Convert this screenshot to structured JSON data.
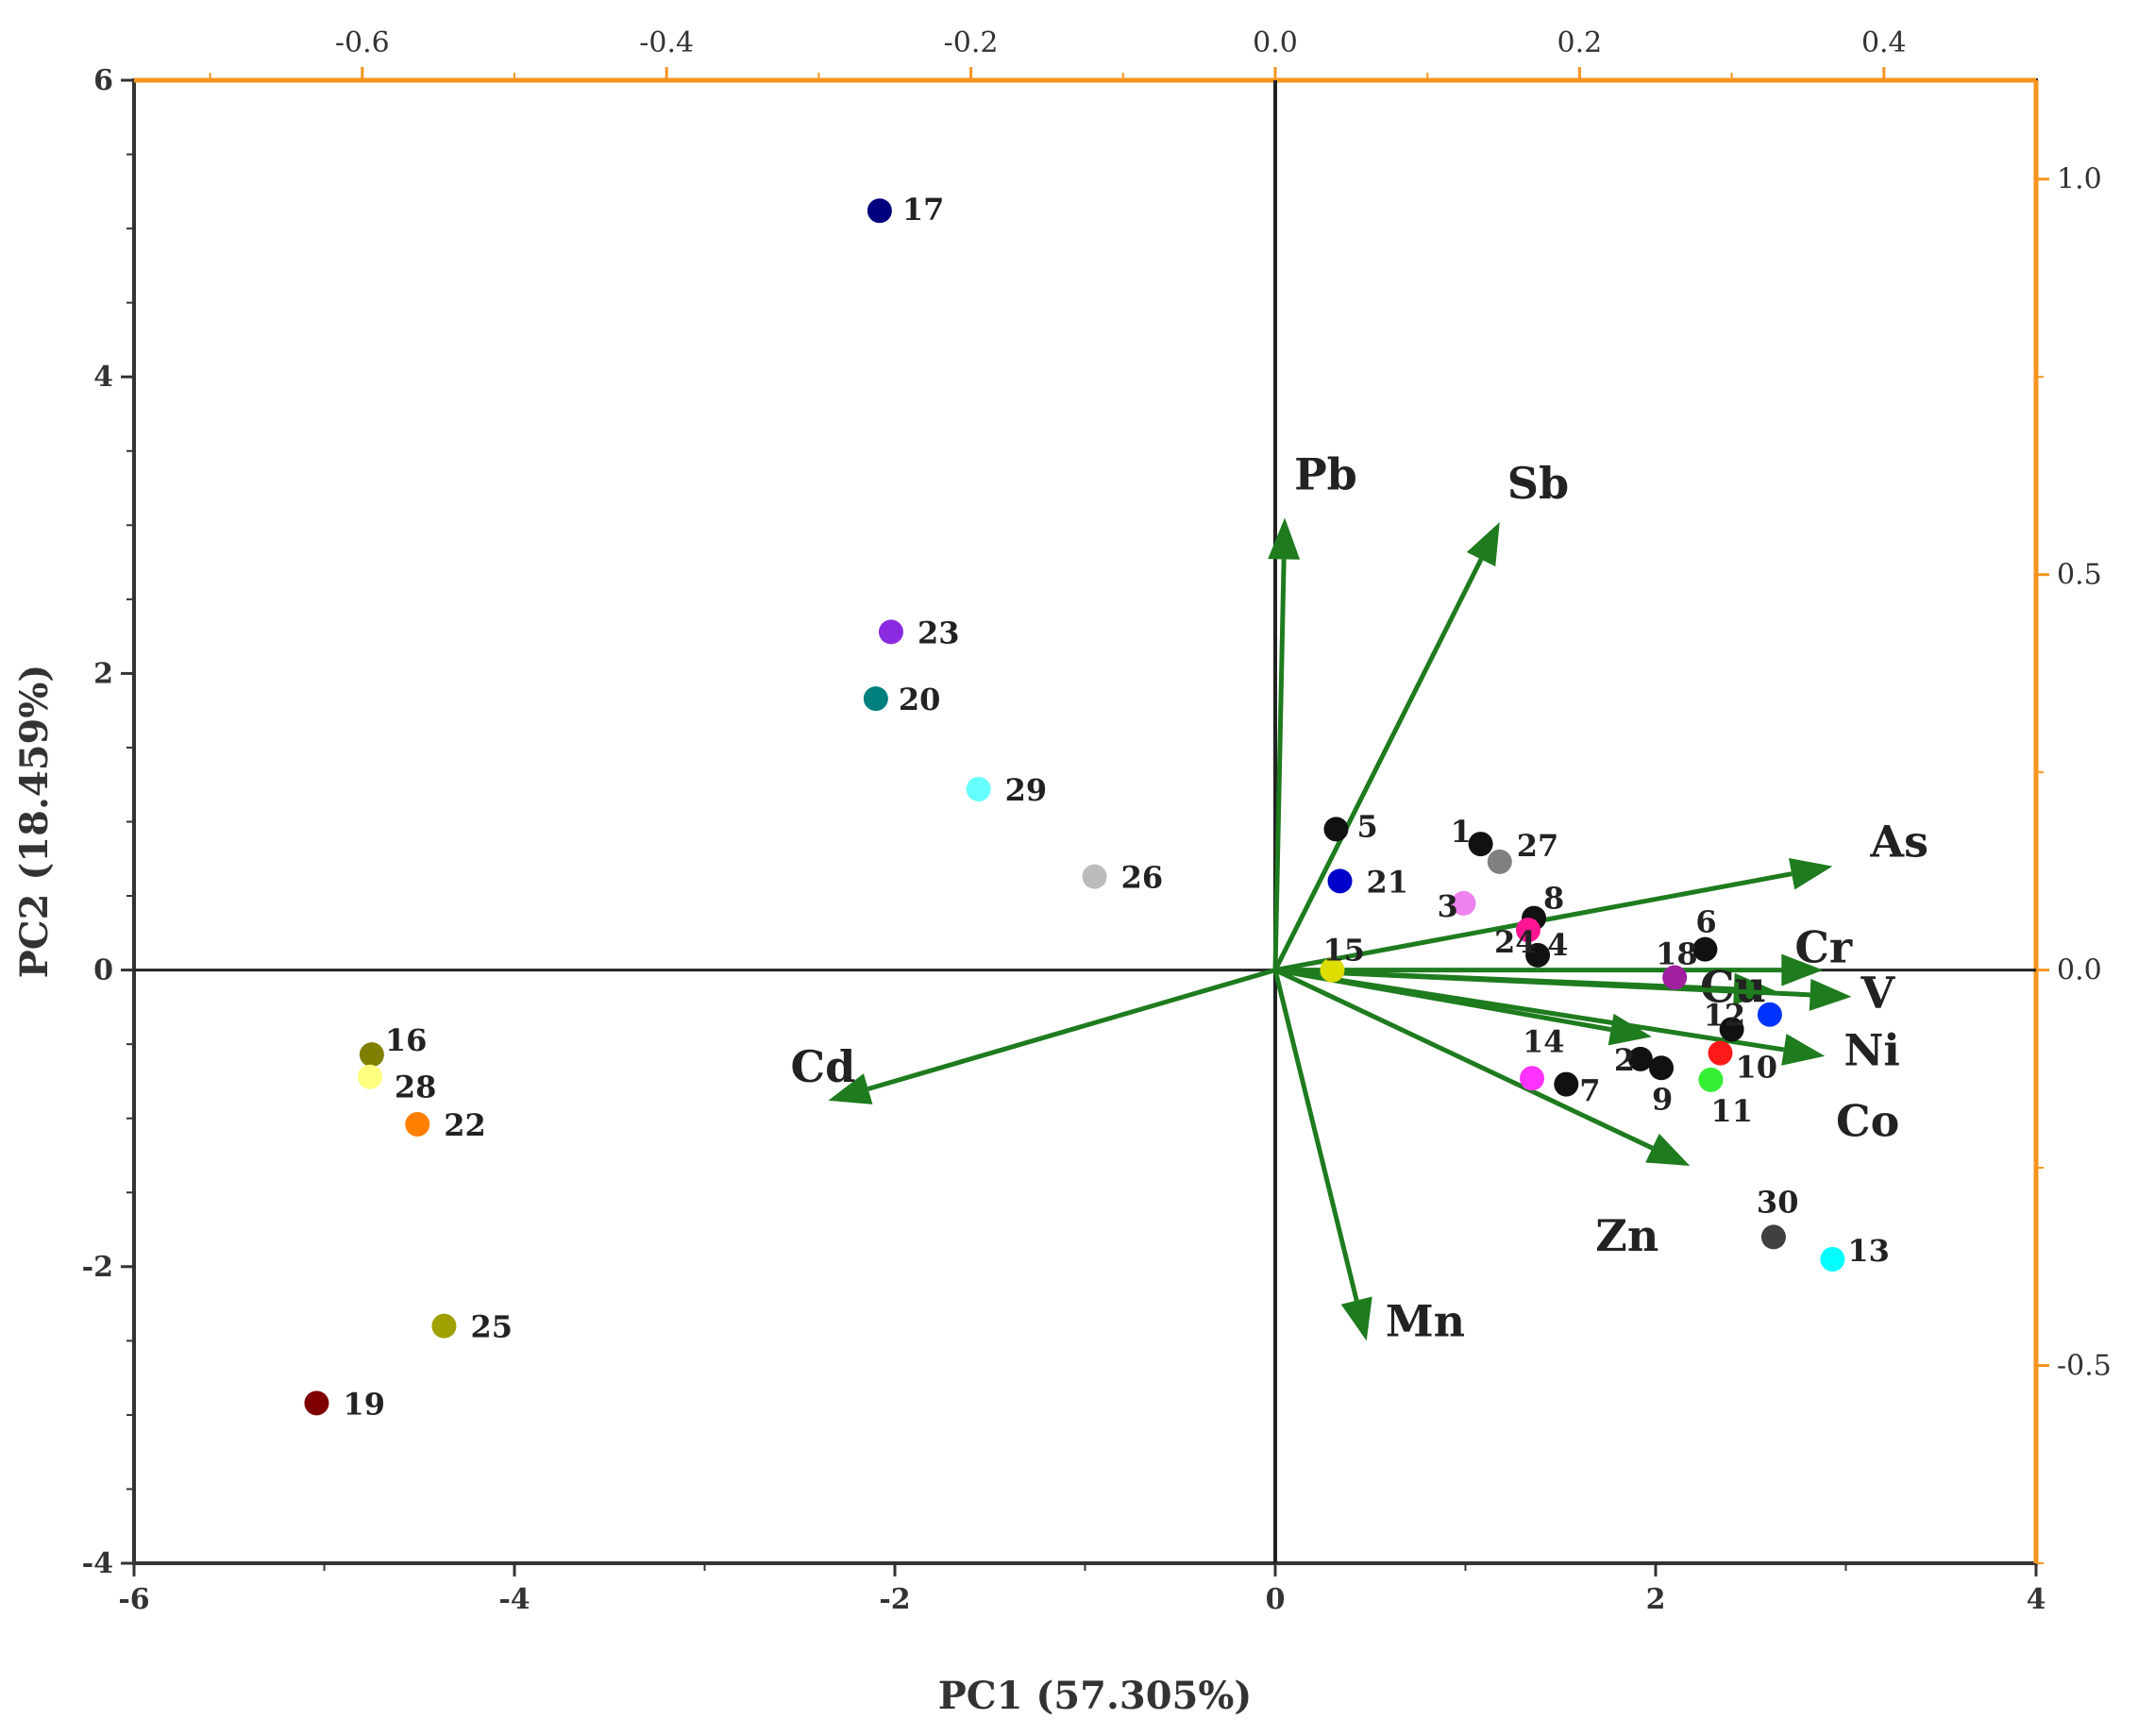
{
  "chart_data": {
    "type": "scatter",
    "subtype": "pca-biplot",
    "xlabel": "PC1 (57.305%)",
    "ylabel": "PC2 (18.459%)",
    "xlim": [
      -6,
      4
    ],
    "ylim": [
      -4,
      6
    ],
    "x_ticks": [
      -6,
      -4,
      -2,
      0,
      2,
      4
    ],
    "y_ticks": [
      -4,
      -2,
      0,
      2,
      4,
      6
    ],
    "x_tick_labels": [
      "-6",
      "-4",
      "-2",
      "0",
      "2",
      "4"
    ],
    "y_tick_labels": [
      "-4",
      "-2",
      "0",
      "2",
      "4",
      "6"
    ],
    "secondary_x": {
      "lim": [
        -0.75,
        0.5
      ],
      "ticks": [
        -0.6,
        -0.4,
        -0.2,
        0.0,
        0.2,
        0.4
      ],
      "tick_labels": [
        "-0.6",
        "-0.4",
        "-0.2",
        "0.0",
        "0.2",
        "0.4"
      ]
    },
    "secondary_y": {
      "lim": [
        -0.75,
        1.125
      ],
      "ticks": [
        -0.5,
        0.0,
        0.5,
        1.0
      ],
      "tick_labels": [
        "-0.5",
        "0.0",
        "0.5",
        "1.0"
      ]
    },
    "accent_color": "#f7941d",
    "arrow_color": "#1e7b1e",
    "points": [
      {
        "label": "1",
        "x": 1.08,
        "y": 0.85,
        "color": "#111111"
      },
      {
        "label": "2",
        "x": 1.92,
        "y": -0.6,
        "color": "#111111"
      },
      {
        "label": "3",
        "x": 0.99,
        "y": 0.45,
        "color": "#ee82ee"
      },
      {
        "label": "4",
        "x": 1.38,
        "y": 0.1,
        "color": "#111111"
      },
      {
        "label": "5",
        "x": 0.32,
        "y": 0.95,
        "color": "#111111"
      },
      {
        "label": "6",
        "x": 2.26,
        "y": 0.14,
        "color": "#111111"
      },
      {
        "label": "7",
        "x": 1.53,
        "y": -0.77,
        "color": "#111111"
      },
      {
        "label": "8",
        "x": 1.36,
        "y": 0.35,
        "color": "#111111"
      },
      {
        "label": "9",
        "x": 2.03,
        "y": -0.66,
        "color": "#111111"
      },
      {
        "label": "10",
        "x": 2.34,
        "y": -0.56,
        "color": "#ff1a1a"
      },
      {
        "label": "11",
        "x": 2.29,
        "y": -0.74,
        "color": "#33ee33"
      },
      {
        "label": "12",
        "x": 2.4,
        "y": -0.4,
        "color": "#111111"
      },
      {
        "label": "13",
        "x": 2.93,
        "y": -1.95,
        "color": "#00ffff"
      },
      {
        "label": "14",
        "x": 1.35,
        "y": -0.73,
        "color": "#ff33ff"
      },
      {
        "label": "15",
        "x": 0.3,
        "y": 0.0,
        "color": "#dddd00"
      },
      {
        "label": "16",
        "x": -4.75,
        "y": -0.57,
        "color": "#7f7f00"
      },
      {
        "label": "17",
        "x": -2.08,
        "y": 5.12,
        "color": "#00007f"
      },
      {
        "label": "18",
        "x": 2.1,
        "y": -0.05,
        "color": "#a020a0"
      },
      {
        "label": "19",
        "x": -5.04,
        "y": -2.92,
        "color": "#7f0000"
      },
      {
        "label": "20",
        "x": -2.1,
        "y": 1.83,
        "color": "#007f7f"
      },
      {
        "label": "21",
        "x": 0.34,
        "y": 0.6,
        "color": "#0000cc"
      },
      {
        "label": "22",
        "x": -4.51,
        "y": -1.04,
        "color": "#ff7f00"
      },
      {
        "label": "23",
        "x": -2.02,
        "y": 2.28,
        "color": "#8a2be2"
      },
      {
        "label": "24",
        "x": 1.33,
        "y": 0.27,
        "color": "#ff1493"
      },
      {
        "label": "25",
        "x": -4.37,
        "y": -2.4,
        "color": "#a0a000"
      },
      {
        "label": "26",
        "x": -0.95,
        "y": 0.63,
        "color": "#bbbbbb"
      },
      {
        "label": "27",
        "x": 1.18,
        "y": 0.73,
        "color": "#808080"
      },
      {
        "label": "28",
        "x": -4.76,
        "y": -0.72,
        "color": "#ffff80"
      },
      {
        "label": "29",
        "x": -1.56,
        "y": 1.22,
        "color": "#66ffff"
      },
      {
        "label": "30",
        "x": 2.62,
        "y": -1.8,
        "color": "#404040"
      },
      {
        "label": "Cu_pt",
        "x": 2.6,
        "y": -0.3,
        "color": "#0033ff"
      }
    ],
    "loadings": [
      {
        "name": "Pb",
        "x": 0.05,
        "y": 3.05
      },
      {
        "name": "Sb",
        "x": 1.18,
        "y": 3.02
      },
      {
        "name": "As",
        "x": 2.93,
        "y": 0.7
      },
      {
        "name": "Cr",
        "x": 2.88,
        "y": 0.0
      },
      {
        "name": "Cu",
        "x": 2.63,
        "y": -0.14
      },
      {
        "name": "V",
        "x": 3.03,
        "y": -0.18
      },
      {
        "name": "Ni",
        "x": 2.89,
        "y": -0.58
      },
      {
        "name": "Co",
        "x": 1.98,
        "y": -0.45
      },
      {
        "name": "Zn",
        "x": 2.18,
        "y": -1.32
      },
      {
        "name": "Mn",
        "x": 0.48,
        "y": -2.5
      },
      {
        "name": "Cd",
        "x": -2.35,
        "y": -0.88
      }
    ]
  },
  "point_labels": {
    "1": "1",
    "2": "2",
    "3": "3",
    "4": "4",
    "5": "5",
    "6": "6",
    "7": "7",
    "8": "8",
    "9": "9",
    "10": "10",
    "11": "11",
    "12": "12",
    "13": "13",
    "14": "14",
    "15": "15",
    "16": "16",
    "17": "17",
    "18": "18",
    "19": "19",
    "20": "20",
    "21": "21",
    "22": "22",
    "23": "23",
    "24": "24",
    "25": "25",
    "26": "26",
    "27": "27",
    "28": "28",
    "29": "29",
    "30": "30"
  }
}
